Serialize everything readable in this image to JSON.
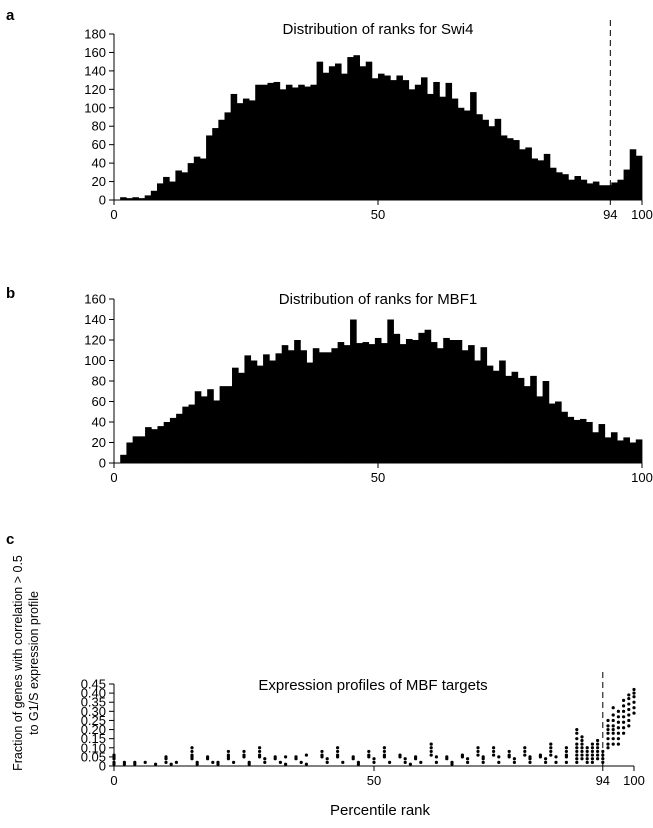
{
  "chart_data": [
    {
      "panel": "a",
      "type": "bar",
      "title": "Distribution of ranks for Swi4",
      "xlim": [
        0,
        100
      ],
      "ylim": [
        0,
        180
      ],
      "x_ticks": [
        "0",
        "50",
        "94",
        "100"
      ],
      "y_ticks": [
        "0",
        "20",
        "40",
        "60",
        "80",
        "100",
        "120",
        "140",
        "160",
        "180"
      ],
      "marker_x": 94,
      "grid": false,
      "values": [
        0,
        3,
        2,
        3,
        2,
        5,
        10,
        18,
        25,
        20,
        32,
        30,
        40,
        47,
        45,
        70,
        78,
        87,
        95,
        115,
        105,
        110,
        108,
        125,
        125,
        127,
        128,
        120,
        125,
        122,
        125,
        123,
        125,
        150,
        138,
        145,
        148,
        137,
        155,
        157,
        145,
        150,
        132,
        137,
        135,
        130,
        135,
        130,
        120,
        125,
        133,
        115,
        128,
        112,
        127,
        110,
        100,
        97,
        117,
        93,
        87,
        80,
        88,
        70,
        67,
        65,
        55,
        57,
        45,
        43,
        50,
        35,
        30,
        28,
        22,
        26,
        22,
        18,
        20,
        16,
        16,
        19,
        22,
        33,
        55,
        48
      ]
    },
    {
      "panel": "b",
      "type": "bar",
      "title": "Distribution of ranks for MBF1",
      "xlim": [
        0,
        100
      ],
      "ylim": [
        0,
        160
      ],
      "x_ticks": [
        "0",
        "50",
        "100"
      ],
      "y_ticks": [
        "0",
        "20",
        "40",
        "60",
        "80",
        "100",
        "120",
        "140",
        "160"
      ],
      "grid": false,
      "values": [
        0,
        8,
        20,
        26,
        26,
        35,
        33,
        36,
        40,
        44,
        48,
        55,
        57,
        70,
        65,
        72,
        61,
        75,
        75,
        93,
        88,
        105,
        100,
        95,
        106,
        100,
        107,
        115,
        110,
        120,
        110,
        98,
        112,
        108,
        108,
        112,
        118,
        115,
        140,
        117,
        118,
        116,
        122,
        117,
        140,
        126,
        116,
        121,
        120,
        127,
        130,
        118,
        112,
        122,
        120,
        120,
        110,
        115,
        100,
        113,
        95,
        90,
        100,
        85,
        89,
        83,
        75,
        85,
        65,
        80,
        58,
        60,
        50,
        45,
        42,
        43,
        40,
        30,
        38,
        25,
        30,
        22,
        25,
        20,
        23
      ]
    },
    {
      "panel": "c",
      "type": "scatter",
      "title": "Expression profiles of MBF targets",
      "xlabel": "Percentile rank",
      "ylabel_lines": [
        "Fraction of genes with correlation > 0.5",
        "to G1/S expression profile"
      ],
      "xlim": [
        0,
        100
      ],
      "ylim": [
        0,
        0.45
      ],
      "x_ticks": [
        "0",
        "50",
        "94",
        "100"
      ],
      "y_ticks": [
        "0",
        "0.05",
        "0.10",
        "0.15",
        "0.20",
        "0.25",
        "0.30",
        "0.35",
        "0.40",
        "0.45"
      ],
      "marker_x": 94,
      "grid": false,
      "series": [
        {
          "values": [
            [
              0,
              0.06
            ],
            [
              0,
              0.05
            ],
            [
              0,
              0.04
            ],
            [
              0,
              0.02
            ],
            [
              0,
              0.01
            ],
            [
              2,
              0.02
            ],
            [
              2,
              0.01
            ],
            [
              4,
              0.02
            ],
            [
              4,
              0.01
            ],
            [
              6,
              0.02
            ],
            [
              8,
              0.01
            ],
            [
              10,
              0.05
            ],
            [
              10,
              0.04
            ],
            [
              10,
              0.02
            ],
            [
              11,
              0.01
            ],
            [
              12,
              0.02
            ],
            [
              15,
              0.1
            ],
            [
              15,
              0.08
            ],
            [
              15,
              0.06
            ],
            [
              15,
              0.05
            ],
            [
              15,
              0.04
            ],
            [
              16,
              0.02
            ],
            [
              16,
              0.01
            ],
            [
              18,
              0.05
            ],
            [
              18,
              0.04
            ],
            [
              19,
              0.02
            ],
            [
              20,
              0.02
            ],
            [
              20,
              0.01
            ],
            [
              22,
              0.08
            ],
            [
              22,
              0.06
            ],
            [
              22,
              0.05
            ],
            [
              22,
              0.04
            ],
            [
              23,
              0.02
            ],
            [
              25,
              0.08
            ],
            [
              25,
              0.06
            ],
            [
              25,
              0.05
            ],
            [
              26,
              0.02
            ],
            [
              26,
              0.01
            ],
            [
              28,
              0.1
            ],
            [
              28,
              0.08
            ],
            [
              28,
              0.06
            ],
            [
              28,
              0.05
            ],
            [
              29,
              0.04
            ],
            [
              29,
              0.02
            ],
            [
              31,
              0.05
            ],
            [
              31,
              0.04
            ],
            [
              32,
              0.02
            ],
            [
              33,
              0.05
            ],
            [
              33,
              0.01
            ],
            [
              35,
              0.05
            ],
            [
              35,
              0.04
            ],
            [
              36,
              0.02
            ],
            [
              37,
              0.06
            ],
            [
              37,
              0.01
            ],
            [
              40,
              0.08
            ],
            [
              40,
              0.06
            ],
            [
              40,
              0.05
            ],
            [
              41,
              0.04
            ],
            [
              41,
              0.02
            ],
            [
              43,
              0.1
            ],
            [
              43,
              0.08
            ],
            [
              43,
              0.06
            ],
            [
              43,
              0.05
            ],
            [
              44,
              0.02
            ],
            [
              46,
              0.05
            ],
            [
              46,
              0.04
            ],
            [
              47,
              0.02
            ],
            [
              47,
              0.01
            ],
            [
              49,
              0.08
            ],
            [
              49,
              0.06
            ],
            [
              49,
              0.05
            ],
            [
              50,
              0.04
            ],
            [
              50,
              0.02
            ],
            [
              52,
              0.1
            ],
            [
              52,
              0.08
            ],
            [
              52,
              0.06
            ],
            [
              52,
              0.05
            ],
            [
              53,
              0.02
            ],
            [
              55,
              0.06
            ],
            [
              55,
              0.05
            ],
            [
              56,
              0.04
            ],
            [
              56,
              0.02
            ],
            [
              57,
              0.01
            ],
            [
              58,
              0.05
            ],
            [
              58,
              0.04
            ],
            [
              59,
              0.02
            ],
            [
              61,
              0.12
            ],
            [
              61,
              0.1
            ],
            [
              61,
              0.08
            ],
            [
              61,
              0.06
            ],
            [
              62,
              0.05
            ],
            [
              62,
              0.02
            ],
            [
              64,
              0.05
            ],
            [
              64,
              0.04
            ],
            [
              65,
              0.02
            ],
            [
              65,
              0.01
            ],
            [
              67,
              0.06
            ],
            [
              67,
              0.05
            ],
            [
              68,
              0.04
            ],
            [
              68,
              0.02
            ],
            [
              70,
              0.1
            ],
            [
              70,
              0.08
            ],
            [
              70,
              0.06
            ],
            [
              71,
              0.05
            ],
            [
              71,
              0.04
            ],
            [
              71,
              0.02
            ],
            [
              73,
              0.1
            ],
            [
              73,
              0.08
            ],
            [
              73,
              0.06
            ],
            [
              74,
              0.05
            ],
            [
              74,
              0.02
            ],
            [
              76,
              0.08
            ],
            [
              76,
              0.06
            ],
            [
              76,
              0.05
            ],
            [
              77,
              0.04
            ],
            [
              77,
              0.02
            ],
            [
              79,
              0.1
            ],
            [
              79,
              0.08
            ],
            [
              79,
              0.06
            ],
            [
              80,
              0.05
            ],
            [
              80,
              0.04
            ],
            [
              80,
              0.02
            ],
            [
              82,
              0.06
            ],
            [
              82,
              0.05
            ],
            [
              83,
              0.04
            ],
            [
              83,
              0.02
            ],
            [
              84,
              0.12
            ],
            [
              84,
              0.1
            ],
            [
              84,
              0.08
            ],
            [
              84,
              0.06
            ],
            [
              85,
              0.05
            ],
            [
              85,
              0.02
            ],
            [
              87,
              0.1
            ],
            [
              87,
              0.08
            ],
            [
              87,
              0.06
            ],
            [
              87,
              0.05
            ],
            [
              87,
              0.02
            ],
            [
              89,
              0.2
            ],
            [
              89,
              0.18
            ],
            [
              89,
              0.15
            ],
            [
              89,
              0.12
            ],
            [
              89,
              0.1
            ],
            [
              89,
              0.08
            ],
            [
              89,
              0.06
            ],
            [
              89,
              0.04
            ],
            [
              89,
              0.02
            ],
            [
              90,
              0.16
            ],
            [
              90,
              0.14
            ],
            [
              90,
              0.12
            ],
            [
              90,
              0.1
            ],
            [
              90,
              0.08
            ],
            [
              90,
              0.06
            ],
            [
              90,
              0.04
            ],
            [
              91,
              0.1
            ],
            [
              91,
              0.08
            ],
            [
              91,
              0.06
            ],
            [
              91,
              0.04
            ],
            [
              91,
              0.02
            ],
            [
              92,
              0.12
            ],
            [
              92,
              0.1
            ],
            [
              92,
              0.08
            ],
            [
              92,
              0.06
            ],
            [
              92,
              0.04
            ],
            [
              92,
              0.02
            ],
            [
              93,
              0.14
            ],
            [
              93,
              0.12
            ],
            [
              93,
              0.1
            ],
            [
              93,
              0.08
            ],
            [
              93,
              0.06
            ],
            [
              93,
              0.04
            ],
            [
              94,
              0.08
            ],
            [
              94,
              0.06
            ],
            [
              94,
              0.04
            ],
            [
              94,
              0.02
            ],
            [
              95,
              0.25
            ],
            [
              95,
              0.22
            ],
            [
              95,
              0.2
            ],
            [
              95,
              0.18
            ],
            [
              95,
              0.15
            ],
            [
              95,
              0.12
            ],
            [
              95,
              0.1
            ],
            [
              96,
              0.32
            ],
            [
              96,
              0.28
            ],
            [
              96,
              0.25
            ],
            [
              96,
              0.22
            ],
            [
              96,
              0.2
            ],
            [
              96,
              0.18
            ],
            [
              96,
              0.15
            ],
            [
              96,
              0.12
            ],
            [
              97,
              0.3
            ],
            [
              97,
              0.27
            ],
            [
              97,
              0.24
            ],
            [
              97,
              0.21
            ],
            [
              97,
              0.18
            ],
            [
              97,
              0.15
            ],
            [
              97,
              0.12
            ],
            [
              98,
              0.36
            ],
            [
              98,
              0.33
            ],
            [
              98,
              0.3
            ],
            [
              98,
              0.27
            ],
            [
              98,
              0.24
            ],
            [
              98,
              0.21
            ],
            [
              98,
              0.18
            ],
            [
              99,
              0.39
            ],
            [
              99,
              0.37
            ],
            [
              99,
              0.34
            ],
            [
              99,
              0.31
            ],
            [
              99,
              0.28
            ],
            [
              99,
              0.25
            ],
            [
              99,
              0.22
            ],
            [
              100,
              0.42
            ],
            [
              100,
              0.4
            ],
            [
              100,
              0.38
            ],
            [
              100,
              0.35
            ],
            [
              100,
              0.32
            ],
            [
              100,
              0.29
            ]
          ]
        }
      ]
    }
  ]
}
